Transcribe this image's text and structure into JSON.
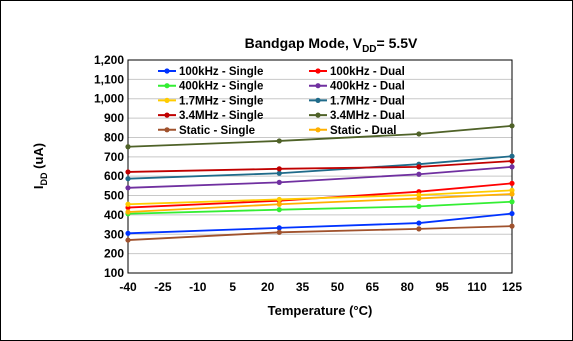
{
  "chart_data": {
    "type": "line",
    "title": {
      "main": "Bandgap Mode, V",
      "sub": "DD",
      "suffix": "= 5.5V"
    },
    "xlabel": "Temperature (°C)",
    "ylabel": {
      "main": "I",
      "sub": "DD",
      "suffix": " (uA)"
    },
    "xlim": [
      -40,
      125
    ],
    "ylim": [
      100,
      1200
    ],
    "x_ticks": [
      -40,
      -25,
      -10,
      5,
      20,
      35,
      50,
      65,
      80,
      95,
      110,
      125
    ],
    "y_ticks": [
      100,
      200,
      300,
      400,
      500,
      600,
      700,
      800,
      900,
      1000,
      1100,
      1200
    ],
    "y_tick_labels": [
      "100",
      "200",
      "300",
      "400",
      "500",
      "600",
      "700",
      "800",
      "900",
      "1,000",
      "1,100",
      "1,200"
    ],
    "grid": "horizontal",
    "legend_position": "top",
    "series": [
      {
        "name": "100kHz - Single",
        "color": "#0033ff",
        "x": [
          -40,
          25,
          85,
          125
        ],
        "values": [
          305,
          333,
          358,
          407
        ]
      },
      {
        "name": "100kHz - Dual",
        "color": "#ff0000",
        "x": [
          -40,
          25,
          85,
          125
        ],
        "values": [
          438,
          473,
          520,
          563
        ]
      },
      {
        "name": "400kHz - Single",
        "color": "#33ee33",
        "x": [
          -40,
          25,
          85,
          125
        ],
        "values": [
          406,
          427,
          444,
          468
        ]
      },
      {
        "name": "400kHz - Dual",
        "color": "#7030a0",
        "x": [
          -40,
          25,
          85,
          125
        ],
        "values": [
          540,
          568,
          610,
          648
        ]
      },
      {
        "name": "1.7MHz - Single",
        "color": "#ffcc00",
        "x": [
          -40,
          25,
          85,
          125
        ],
        "values": [
          455,
          480,
          503,
          527
        ]
      },
      {
        "name": "1.7MHz - Dual",
        "color": "#1f6b8a",
        "x": [
          -40,
          25,
          85,
          125
        ],
        "values": [
          587,
          615,
          662,
          703
        ]
      },
      {
        "name": "3.4MHz - Single",
        "color": "#c00000",
        "x": [
          -40,
          25,
          85,
          125
        ],
        "values": [
          622,
          638,
          648,
          678
        ]
      },
      {
        "name": "3.4MHz - Dual",
        "color": "#4f6228",
        "x": [
          -40,
          25,
          85,
          125
        ],
        "values": [
          752,
          782,
          818,
          860
        ]
      },
      {
        "name": "Static - Single",
        "color": "#a0522d",
        "x": [
          -40,
          25,
          85,
          125
        ],
        "values": [
          270,
          310,
          328,
          342
        ]
      },
      {
        "name": "Static - Dual",
        "color": "#ffb000",
        "x": [
          -40,
          25,
          85,
          125
        ],
        "values": [
          415,
          455,
          485,
          508
        ]
      }
    ]
  }
}
